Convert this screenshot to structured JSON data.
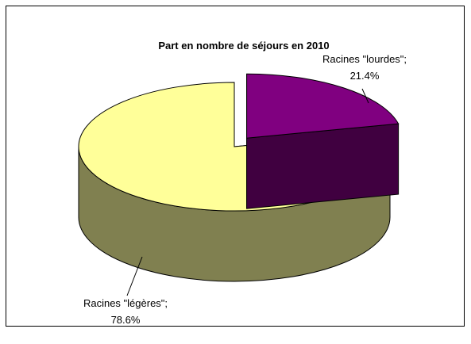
{
  "chart_data": {
    "type": "pie",
    "title": "Part en nombre de séjours en 2010",
    "slices": [
      {
        "label": "Racines \"lourdes\";",
        "value_label": "21.4%",
        "value": 21.4,
        "color": "#800080",
        "side_color": "#400040",
        "exploded": true
      },
      {
        "label": "Racines \"légères\";",
        "value_label": "78.6%",
        "value": 78.6,
        "color": "#ffff99",
        "side_color": "#808050",
        "exploded": false
      }
    ],
    "style": "3d-exploded-pie",
    "legend": "none"
  }
}
